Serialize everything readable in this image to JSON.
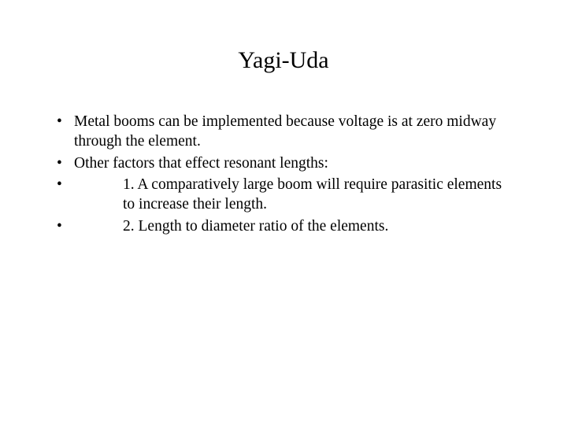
{
  "title": "Yagi-Uda",
  "bullets": [
    {
      "text": "Metal booms can be implemented because voltage is at zero midway through the element.",
      "indent": false
    },
    {
      "text": "Other factors that effect resonant lengths:",
      "indent": false
    },
    {
      "text": "1. A comparatively large boom will require parasitic elements to increase their length.",
      "indent": true
    },
    {
      "text": "2. Length to diameter ratio of the elements.",
      "indent": true
    }
  ],
  "styling": {
    "background_color": "#ffffff",
    "text_color": "#000000",
    "font_family": "Times New Roman",
    "title_fontsize": 30,
    "body_fontsize": 19.5,
    "bullet_char": "•"
  }
}
